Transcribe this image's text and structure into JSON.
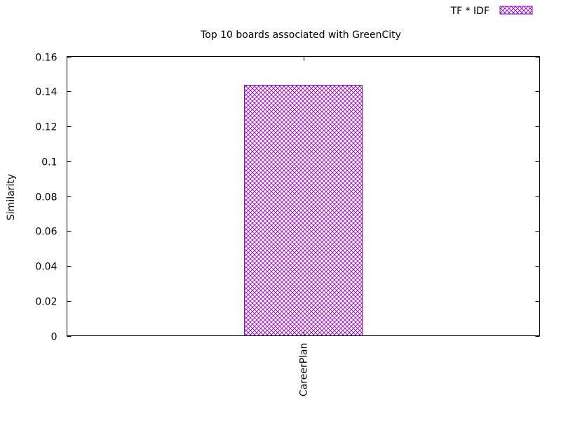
{
  "chart_data": {
    "type": "bar",
    "title": "Top 10 boards associated with GreenCity",
    "xlabel": "",
    "ylabel": "Similarity",
    "categories": [
      "CareerPlan"
    ],
    "series": [
      {
        "name": "TF * IDF",
        "values": [
          0.1435
        ],
        "color": "#9400d3",
        "fill_pattern": "crosshatch"
      }
    ],
    "ylim": [
      0,
      0.16
    ],
    "yticks": [
      0,
      0.02,
      0.04,
      0.06,
      0.08,
      0.1,
      0.12,
      0.14,
      0.16
    ],
    "ytick_labels": [
      "0",
      "0.02",
      "0.04",
      "0.06",
      "0.08",
      "0.1",
      "0.12",
      "0.14",
      "0.16"
    ],
    "grid": false,
    "legend_position": "top-right",
    "xtick_rotation": "vertical"
  }
}
